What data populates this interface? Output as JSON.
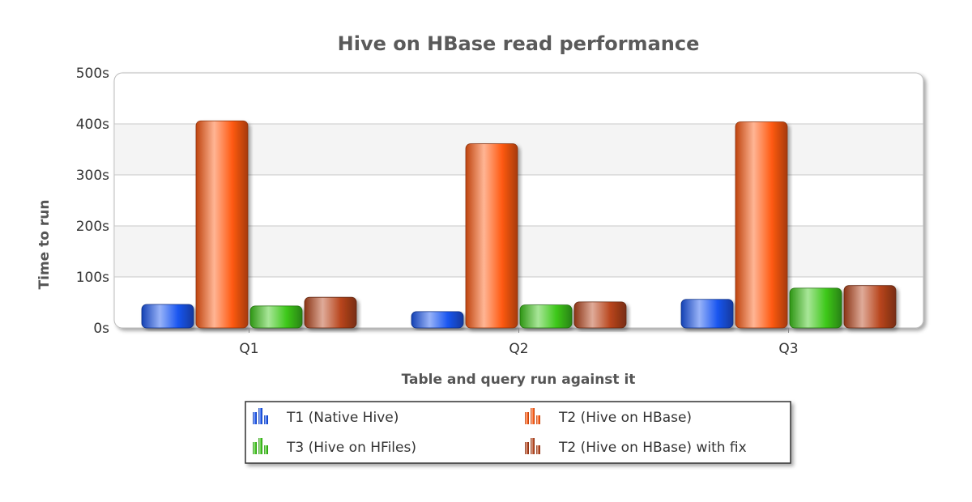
{
  "chart_data": {
    "type": "bar",
    "title": "Hive on HBase read performance",
    "xlabel": "Table and query run against it",
    "ylabel": "Time to run",
    "categories": [
      "Q1",
      "Q2",
      "Q3"
    ],
    "ylim": [
      0,
      500
    ],
    "yticks": [
      "0s",
      "100s",
      "200s",
      "300s",
      "400s",
      "500s"
    ],
    "series": [
      {
        "name": "T1 (Native Hive)",
        "color": "#1a56f0",
        "values": [
          46,
          32,
          56
        ]
      },
      {
        "name": "T2 (Hive on HBase)",
        "color": "#ff5a12",
        "values": [
          406,
          361,
          404
        ]
      },
      {
        "name": "T3 (Hive on HFiles)",
        "color": "#3ec81a",
        "values": [
          43,
          45,
          78
        ]
      },
      {
        "name": "T2 (Hive on HBase) with fix",
        "color": "#b8451c",
        "values": [
          60,
          51,
          83
        ]
      }
    ],
    "grid": true,
    "legend_position": "bottom"
  }
}
